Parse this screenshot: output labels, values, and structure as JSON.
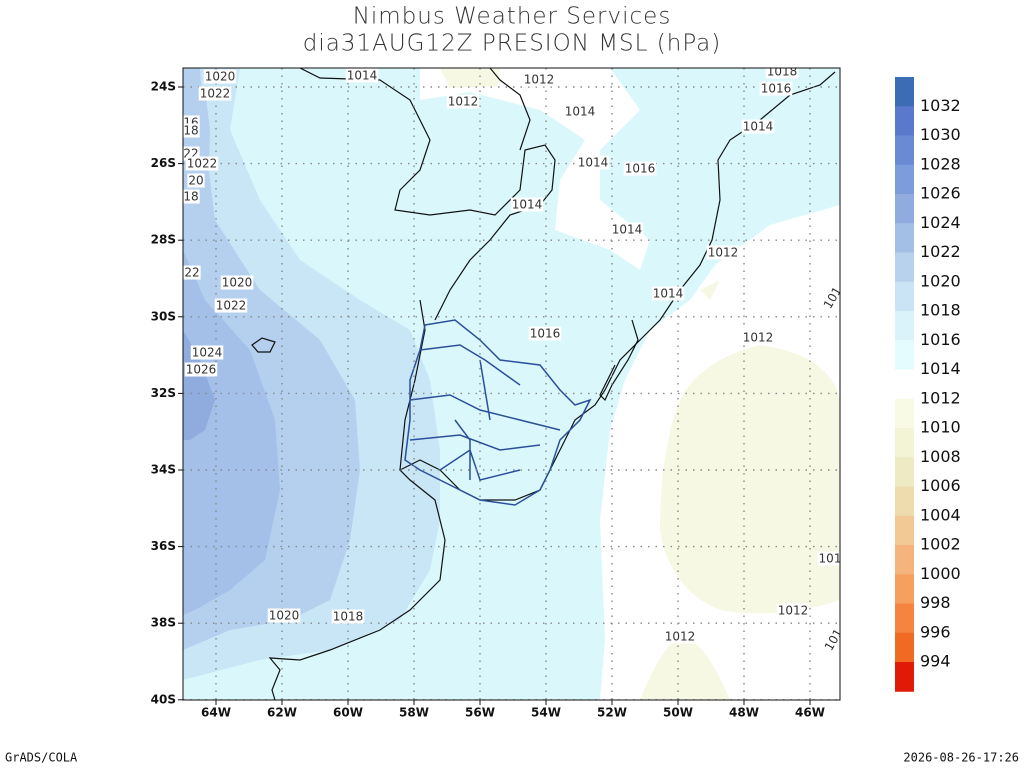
{
  "header": {
    "title": "Nimbus Weather Services",
    "subtitle": "dia31AUG12Z PRESION MSL (hPa)"
  },
  "axes": {
    "lon_labels": [
      "64W",
      "62W",
      "60W",
      "58W",
      "56W",
      "54W",
      "52W",
      "50W",
      "48W",
      "46W"
    ],
    "lat_labels": [
      "24S",
      "26S",
      "28S",
      "30S",
      "32S",
      "34S",
      "36S",
      "38S",
      "40S"
    ]
  },
  "colorbar": {
    "levels": [
      1032,
      1030,
      1028,
      1026,
      1024,
      1022,
      1020,
      1018,
      1016,
      1014,
      1012,
      1010,
      1008,
      1006,
      1004,
      1002,
      1000,
      998,
      996,
      994
    ],
    "colors": [
      "#3c6cb4",
      "#5a78cc",
      "#6a8ad4",
      "#7c9cdc",
      "#90acdf",
      "#a4bfe6",
      "#b8d2ee",
      "#cae4f5",
      "#daf3fa",
      "#e4fcfd",
      "#ffffff",
      "#f8fae6",
      "#f3f3d6",
      "#eeebc4",
      "#efdcae",
      "#f2c894",
      "#f5b47e",
      "#f6a060",
      "#f48440",
      "#f06a24",
      "#e01a06"
    ]
  },
  "contour_labels": [
    1020,
    1022,
    16,
    18,
    22,
    1022,
    20,
    18,
    1014,
    1012,
    1012,
    1014,
    1018,
    1016,
    1014,
    1014,
    1016,
    1014,
    1014,
    1012,
    22,
    1020,
    1022,
    1014,
    1016,
    1012,
    1024,
    1026,
    101,
    101,
    1012,
    1012,
    101,
    1020,
    1018
  ],
  "footer": {
    "left": "GrADS/COLA",
    "right": "2026-08-26-17:26"
  }
}
